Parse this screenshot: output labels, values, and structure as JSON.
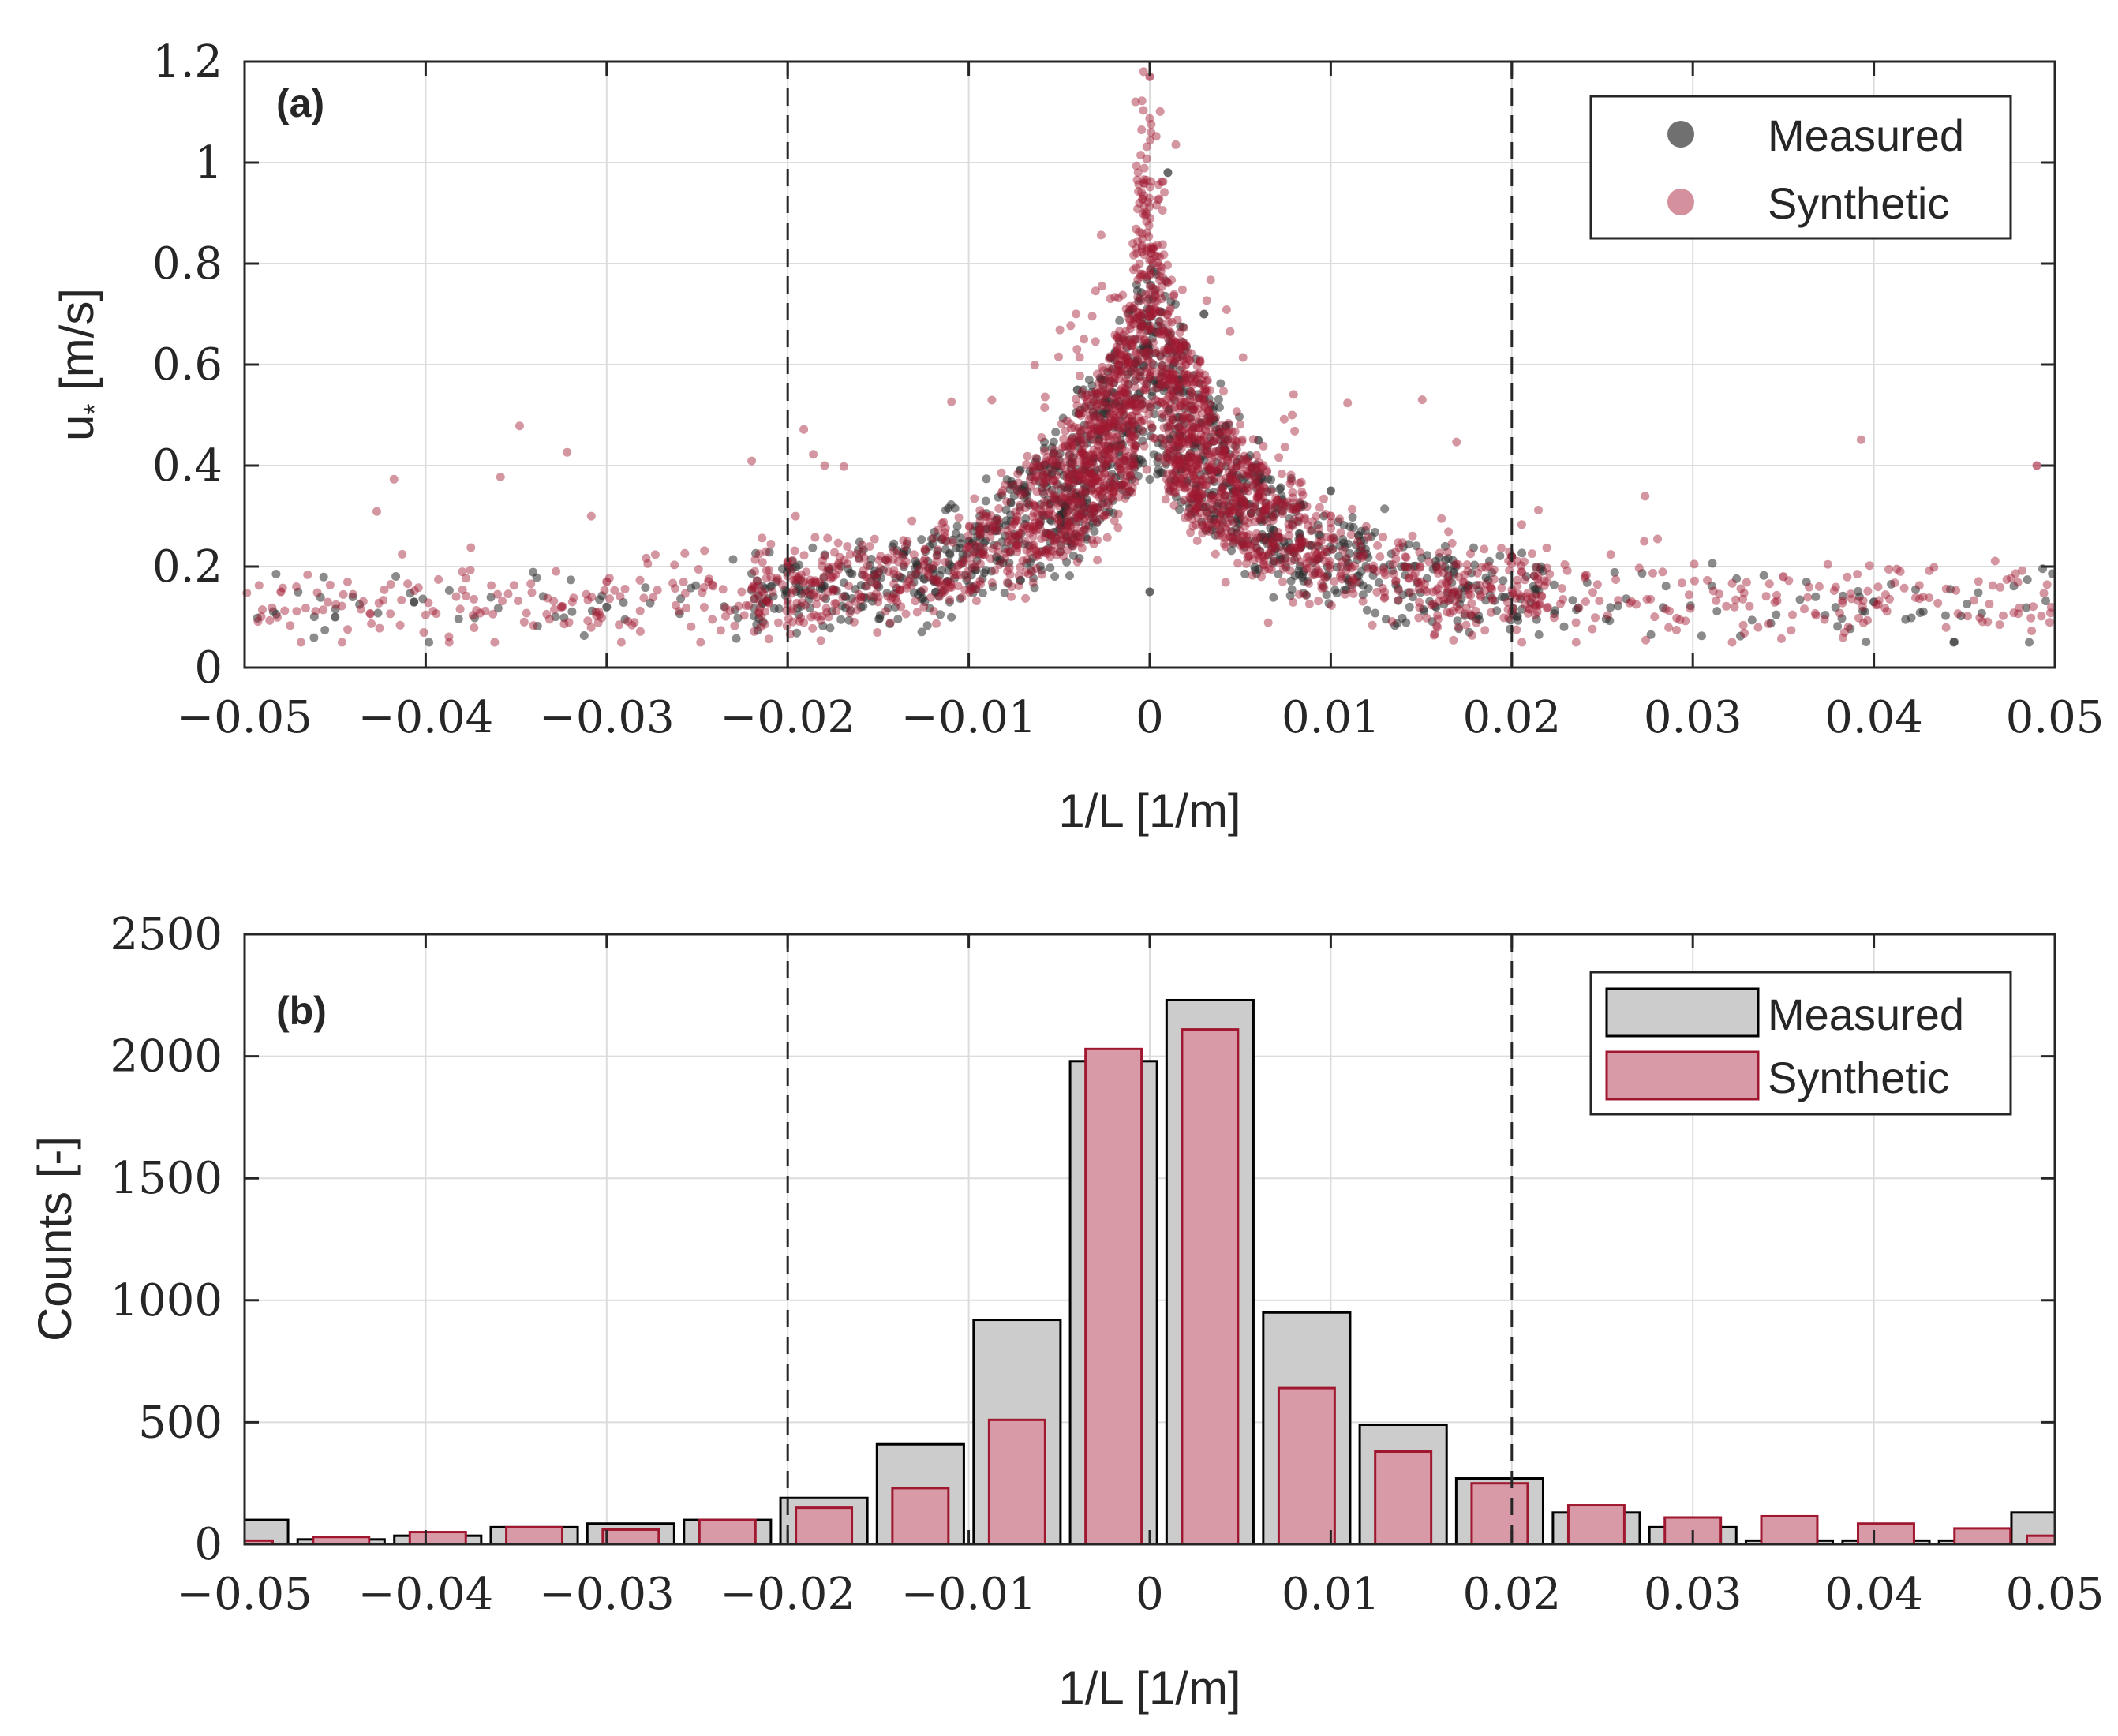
{
  "chart_data": [
    {
      "type": "scatter",
      "panel_label": "(a)",
      "xlabel": "1/L [1/m]",
      "ylabel": "u* [m/s]",
      "ylabel_main": "u",
      "ylabel_sub": "*",
      "ylabel_units": " [m/s]",
      "xlim": [
        -0.05,
        0.05
      ],
      "ylim": [
        0,
        1.2
      ],
      "xticks": [
        -0.05,
        -0.04,
        -0.03,
        -0.02,
        -0.01,
        0,
        0.01,
        0.02,
        0.03,
        0.04,
        0.05
      ],
      "xtick_labels": [
        "−0.05",
        "−0.04",
        "−0.03",
        "−0.02",
        "−0.01",
        "0",
        "0.01",
        "0.02",
        "0.03",
        "0.04",
        "0.05"
      ],
      "yticks": [
        0,
        0.2,
        0.4,
        0.6,
        0.8,
        1,
        1.2
      ],
      "ytick_labels": [
        "0",
        "0.2",
        "0.4",
        "0.6",
        "0.8",
        "1",
        "1.2"
      ],
      "reference_lines_x": [
        -0.02,
        0.02
      ],
      "grid": true,
      "legend_position": "top-right",
      "series": [
        {
          "name": "Measured",
          "color": "#2b2b2b",
          "approx_points": 1400,
          "description_points": [
            {
              "x": -0.045,
              "y": 0.1
            },
            {
              "x": -0.03,
              "y": 0.12
            },
            {
              "x": -0.02,
              "y": 0.2
            },
            {
              "x": -0.01,
              "y": 0.25
            },
            {
              "x": -0.004,
              "y": 0.55
            },
            {
              "x": 0,
              "y": 0.15
            },
            {
              "x": 0.001,
              "y": 0.98
            },
            {
              "x": 0.003,
              "y": 0.7
            },
            {
              "x": 0.006,
              "y": 0.45
            },
            {
              "x": 0.01,
              "y": 0.35
            },
            {
              "x": 0.02,
              "y": 0.22
            },
            {
              "x": 0.04,
              "y": 0.13
            }
          ]
        },
        {
          "name": "Synthetic",
          "color": "#a01830",
          "approx_points": 2600,
          "description_points": [
            {
              "x": -0.048,
              "y": 0.15
            },
            {
              "x": -0.03,
              "y": 0.17
            },
            {
              "x": -0.02,
              "y": 0.21
            },
            {
              "x": -0.01,
              "y": 0.24
            },
            {
              "x": -0.002,
              "y": 0.5
            },
            {
              "x": 0,
              "y": 1.17
            },
            {
              "x": 0.002,
              "y": 0.6
            },
            {
              "x": 0.01,
              "y": 0.3
            },
            {
              "x": 0.02,
              "y": 0.22
            },
            {
              "x": 0.035,
              "y": 0.18
            },
            {
              "x": 0.049,
              "y": 0.4
            }
          ]
        }
      ]
    },
    {
      "type": "bar",
      "panel_label": "(b)",
      "xlabel": "1/L [1/m]",
      "ylabel": "Counts [-]",
      "xlim": [
        -0.05,
        0.05
      ],
      "ylim": [
        0,
        2500
      ],
      "xticks": [
        -0.05,
        -0.04,
        -0.03,
        -0.02,
        -0.01,
        0,
        0.01,
        0.02,
        0.03,
        0.04,
        0.05
      ],
      "xtick_labels": [
        "−0.05",
        "−0.04",
        "−0.03",
        "−0.02",
        "−0.01",
        "0",
        "0.01",
        "0.02",
        "0.03",
        "0.04",
        "0.05"
      ],
      "yticks": [
        0,
        500,
        1000,
        1500,
        2000,
        2500
      ],
      "ytick_labels": [
        "0",
        "500",
        "1000",
        "1500",
        "2000",
        "2500"
      ],
      "reference_lines_x": [
        -0.02,
        0.02
      ],
      "grid": true,
      "legend_position": "top-right",
      "bin_width": 0.005333,
      "bin_centers": [
        -0.05,
        -0.04467,
        -0.03933,
        -0.034,
        -0.02867,
        -0.02333,
        -0.018,
        -0.01267,
        -0.00733,
        -0.002,
        0.00333,
        0.00867,
        0.014,
        0.01933,
        0.02467,
        0.03,
        0.03533,
        0.04067,
        0.046,
        0.05
      ],
      "series": [
        {
          "name": "Measured",
          "color": "#cccccc",
          "edge_color": "#000000",
          "values": [
            100,
            20,
            35,
            70,
            85,
            100,
            190,
            410,
            920,
            1980,
            2230,
            950,
            490,
            270,
            130,
            70,
            15,
            15,
            15,
            130
          ]
        },
        {
          "name": "Synthetic",
          "color": "#d89aa6",
          "edge_color": "#a01830",
          "values": [
            15,
            30,
            50,
            70,
            60,
            100,
            150,
            230,
            510,
            2030,
            2110,
            640,
            380,
            250,
            160,
            110,
            115,
            85,
            65,
            35
          ]
        }
      ]
    }
  ]
}
